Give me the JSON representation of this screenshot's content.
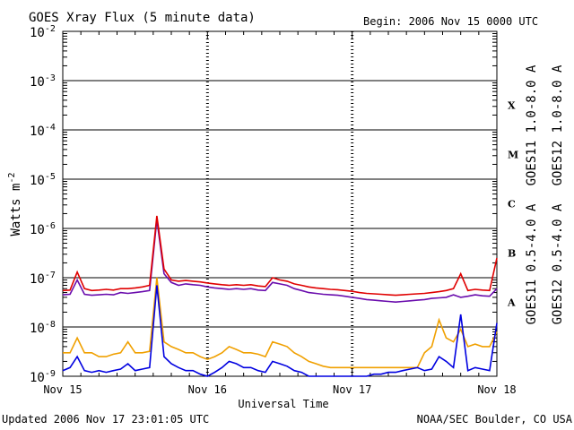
{
  "chart_data": {
    "type": "line",
    "title": "GOES Xray Flux (5 minute data)",
    "begin_label": "Begin:  2006 Nov 15 0000 UTC",
    "xlabel": "Universal Time",
    "ylabel": "Watts m",
    "ylabel_exp": "-2",
    "y_scale": "log",
    "ylim": [
      1e-09,
      0.01
    ],
    "xlim_days": [
      0,
      3
    ],
    "x_tick_labels": [
      "Nov 15",
      "Nov 16",
      "Nov 17",
      "Nov 18"
    ],
    "y_ticks": [
      {
        "base": "10",
        "exp": "-2"
      },
      {
        "base": "10",
        "exp": "-3"
      },
      {
        "base": "10",
        "exp": "-4"
      },
      {
        "base": "10",
        "exp": "-5"
      },
      {
        "base": "10",
        "exp": "-6"
      },
      {
        "base": "10",
        "exp": "-7"
      },
      {
        "base": "10",
        "exp": "-8"
      },
      {
        "base": "10",
        "exp": "-9"
      }
    ],
    "flare_classes": [
      "X",
      "M",
      "C",
      "B",
      "A"
    ],
    "grid": "horizontal lines at each decade",
    "legend": "right side, vertical",
    "series": [
      {
        "name": "GOES11 1.0-8.0 A",
        "color": "#6a0dad",
        "x_days": [
          0,
          0.05,
          0.1,
          0.15,
          0.2,
          0.25,
          0.3,
          0.35,
          0.4,
          0.45,
          0.5,
          0.55,
          0.6,
          0.65,
          0.7,
          0.75,
          0.8,
          0.85,
          0.9,
          0.95,
          1.0,
          1.05,
          1.1,
          1.15,
          1.2,
          1.25,
          1.3,
          1.35,
          1.4,
          1.45,
          1.5,
          1.55,
          1.6,
          1.65,
          1.7,
          1.75,
          1.8,
          1.85,
          1.9,
          1.95,
          2.0,
          2.05,
          2.1,
          2.15,
          2.2,
          2.25,
          2.3,
          2.35,
          2.4,
          2.45,
          2.5,
          2.55,
          2.6,
          2.65,
          2.7,
          2.75,
          2.8,
          2.85,
          2.9,
          2.95,
          3.0
        ],
        "values": [
          4.5e-08,
          4.6e-08,
          9e-08,
          4.6e-08,
          4.4e-08,
          4.5e-08,
          4.6e-08,
          4.5e-08,
          5e-08,
          4.8e-08,
          5e-08,
          5.2e-08,
          5.5e-08,
          1.5e-06,
          1.2e-07,
          8e-08,
          7e-08,
          7.5e-08,
          7.2e-08,
          7e-08,
          6.5e-08,
          6.2e-08,
          6e-08,
          5.8e-08,
          6e-08,
          5.8e-08,
          6e-08,
          5.6e-08,
          5.5e-08,
          8e-08,
          7.5e-08,
          7e-08,
          6e-08,
          5.5e-08,
          5e-08,
          4.8e-08,
          4.6e-08,
          4.5e-08,
          4.4e-08,
          4.2e-08,
          4e-08,
          3.8e-08,
          3.6e-08,
          3.5e-08,
          3.4e-08,
          3.3e-08,
          3.2e-08,
          3.3e-08,
          3.4e-08,
          3.5e-08,
          3.6e-08,
          3.8e-08,
          3.9e-08,
          4e-08,
          4.5e-08,
          4e-08,
          4.2e-08,
          4.5e-08,
          4.3e-08,
          4.2e-08,
          6e-08
        ]
      },
      {
        "name": "GOES12 1.0-8.0 A",
        "color": "#e00000",
        "x_days": [
          0,
          0.05,
          0.1,
          0.15,
          0.2,
          0.25,
          0.3,
          0.35,
          0.4,
          0.45,
          0.5,
          0.55,
          0.6,
          0.65,
          0.7,
          0.75,
          0.8,
          0.85,
          0.9,
          0.95,
          1.0,
          1.05,
          1.1,
          1.15,
          1.2,
          1.25,
          1.3,
          1.35,
          1.4,
          1.45,
          1.5,
          1.55,
          1.6,
          1.65,
          1.7,
          1.75,
          1.8,
          1.85,
          1.9,
          1.95,
          2.0,
          2.05,
          2.1,
          2.15,
          2.2,
          2.25,
          2.3,
          2.35,
          2.4,
          2.45,
          2.5,
          2.55,
          2.6,
          2.65,
          2.7,
          2.75,
          2.8,
          2.85,
          2.9,
          2.95,
          3.0
        ],
        "values": [
          5.5e-08,
          5.6e-08,
          1.3e-07,
          6e-08,
          5.5e-08,
          5.6e-08,
          5.8e-08,
          5.6e-08,
          6e-08,
          6e-08,
          6.2e-08,
          6.5e-08,
          7e-08,
          1.8e-06,
          1.5e-07,
          9e-08,
          8.5e-08,
          8.8e-08,
          8.5e-08,
          8.2e-08,
          7.8e-08,
          7.5e-08,
          7.2e-08,
          7e-08,
          7.2e-08,
          7e-08,
          7.2e-08,
          6.8e-08,
          6.6e-08,
          1e-07,
          9e-08,
          8.5e-08,
          7.5e-08,
          7e-08,
          6.5e-08,
          6.2e-08,
          6e-08,
          5.8e-08,
          5.7e-08,
          5.5e-08,
          5.3e-08,
          5e-08,
          4.8e-08,
          4.7e-08,
          4.6e-08,
          4.5e-08,
          4.4e-08,
          4.5e-08,
          4.6e-08,
          4.7e-08,
          4.8e-08,
          5e-08,
          5.2e-08,
          5.5e-08,
          6e-08,
          1.2e-07,
          5.5e-08,
          5.8e-08,
          5.6e-08,
          5.5e-08,
          2.5e-07
        ]
      },
      {
        "name": "GOES11 0.5-4.0 A",
        "color": "#f0a000",
        "x_days": [
          0,
          0.05,
          0.1,
          0.15,
          0.2,
          0.25,
          0.3,
          0.35,
          0.4,
          0.45,
          0.5,
          0.55,
          0.6,
          0.65,
          0.7,
          0.75,
          0.8,
          0.85,
          0.9,
          0.95,
          1.0,
          1.05,
          1.1,
          1.15,
          1.2,
          1.25,
          1.3,
          1.35,
          1.4,
          1.45,
          1.5,
          1.55,
          1.6,
          1.65,
          1.7,
          1.75,
          1.8,
          1.85,
          1.9,
          1.95,
          2.0,
          2.05,
          2.1,
          2.15,
          2.2,
          2.25,
          2.3,
          2.35,
          2.4,
          2.45,
          2.5,
          2.55,
          2.6,
          2.65,
          2.7,
          2.75,
          2.8,
          2.85,
          2.9,
          2.95,
          3.0
        ],
        "values": [
          3e-09,
          3e-09,
          6e-09,
          3e-09,
          3e-09,
          2.5e-09,
          2.5e-09,
          2.8e-09,
          3e-09,
          5e-09,
          3e-09,
          3e-09,
          3.2e-09,
          1e-07,
          5e-09,
          4e-09,
          3.5e-09,
          3e-09,
          3e-09,
          2.5e-09,
          2.2e-09,
          2.5e-09,
          3e-09,
          4e-09,
          3.5e-09,
          3e-09,
          3e-09,
          2.8e-09,
          2.5e-09,
          5e-09,
          4.5e-09,
          4e-09,
          3e-09,
          2.5e-09,
          2e-09,
          1.8e-09,
          1.6e-09,
          1.5e-09,
          1.5e-09,
          1.5e-09,
          1.5e-09,
          1.5e-09,
          1.5e-09,
          1.5e-09,
          1.5e-09,
          1.5e-09,
          1.5e-09,
          1.5e-09,
          1.5e-09,
          1.5e-09,
          3e-09,
          4e-09,
          1.4e-08,
          6e-09,
          5e-09,
          9e-09,
          4e-09,
          4.5e-09,
          4e-09,
          4e-09,
          8e-09
        ]
      },
      {
        "name": "GOES12 0.5-4.0 A",
        "color": "#0000e0",
        "x_days": [
          0,
          0.05,
          0.1,
          0.15,
          0.2,
          0.25,
          0.3,
          0.35,
          0.4,
          0.45,
          0.5,
          0.55,
          0.6,
          0.65,
          0.7,
          0.75,
          0.8,
          0.85,
          0.9,
          0.95,
          1.0,
          1.05,
          1.1,
          1.15,
          1.2,
          1.25,
          1.3,
          1.35,
          1.4,
          1.45,
          1.5,
          1.55,
          1.6,
          1.65,
          1.7,
          1.75,
          1.8,
          1.85,
          1.9,
          1.95,
          2.0,
          2.05,
          2.1,
          2.15,
          2.2,
          2.25,
          2.3,
          2.35,
          2.4,
          2.45,
          2.5,
          2.55,
          2.6,
          2.65,
          2.7,
          2.75,
          2.8,
          2.85,
          2.9,
          2.95,
          3.0
        ],
        "values": [
          1.3e-09,
          1.5e-09,
          2.5e-09,
          1.3e-09,
          1.2e-09,
          1.3e-09,
          1.2e-09,
          1.3e-09,
          1.4e-09,
          1.8e-09,
          1.3e-09,
          1.4e-09,
          1.5e-09,
          7e-08,
          2.5e-09,
          1.8e-09,
          1.5e-09,
          1.3e-09,
          1.3e-09,
          1.1e-09,
          1e-09,
          1.2e-09,
          1.5e-09,
          2e-09,
          1.8e-09,
          1.5e-09,
          1.5e-09,
          1.3e-09,
          1.2e-09,
          2e-09,
          1.8e-09,
          1.6e-09,
          1.3e-09,
          1.2e-09,
          1e-09,
          1e-09,
          1e-09,
          1e-09,
          1e-09,
          1e-09,
          1e-09,
          1e-09,
          1e-09,
          1.1e-09,
          1.1e-09,
          1.2e-09,
          1.2e-09,
          1.3e-09,
          1.4e-09,
          1.5e-09,
          1.3e-09,
          1.4e-09,
          2.5e-09,
          2e-09,
          1.5e-09,
          1.8e-08,
          1.3e-09,
          1.5e-09,
          1.4e-09,
          1.3e-09,
          1.2e-08
        ]
      }
    ]
  },
  "footer": {
    "updated": "Updated 2006 Nov 17 23:01:05 UTC",
    "source": "NOAA/SEC Boulder, CO USA"
  }
}
